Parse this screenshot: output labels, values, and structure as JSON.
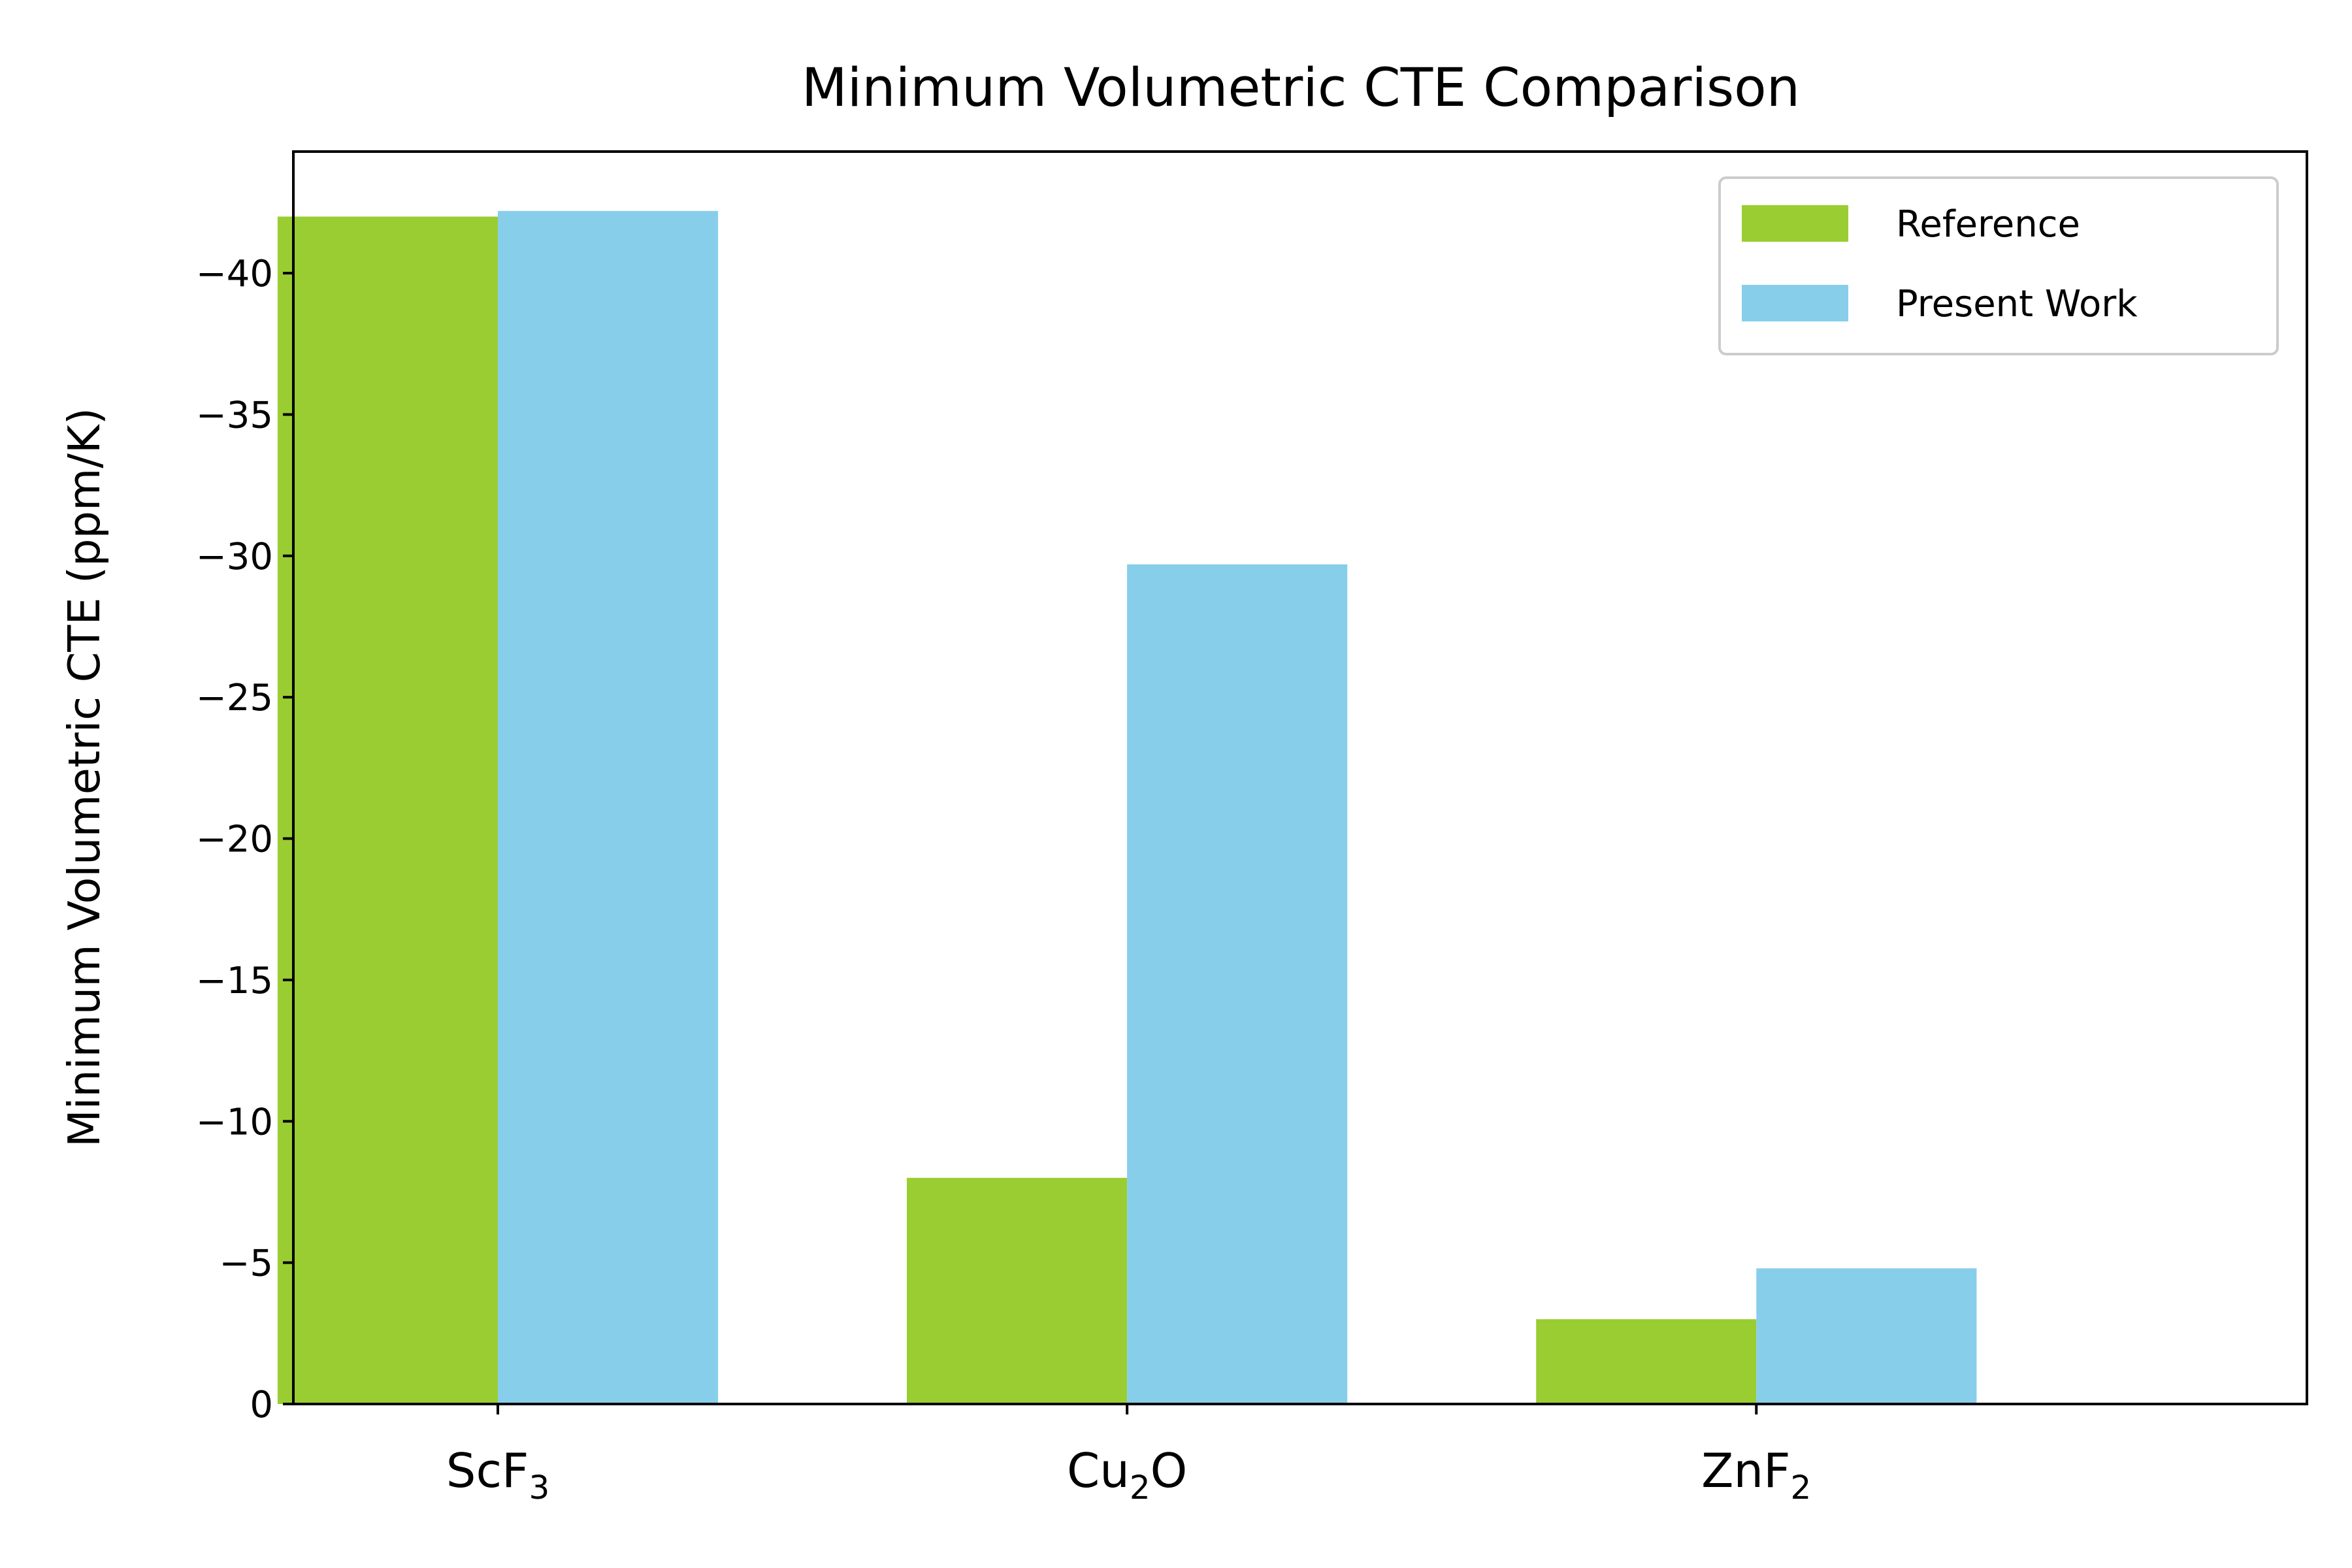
{
  "chart_data": {
    "type": "bar",
    "title": "Minimum Volumetric CTE Comparison",
    "xlabel": "",
    "ylabel": "Minimum Volumetric CTE (ppm/K)",
    "categories": [
      {
        "base": "ScF",
        "sub": "3",
        "tail": ""
      },
      {
        "base": "Cu",
        "sub": "2",
        "tail": "O"
      },
      {
        "base": "ZnF",
        "sub": "2",
        "tail": ""
      }
    ],
    "series": [
      {
        "name": "Reference",
        "color": "#9acd32",
        "values": [
          -42.0,
          -8.0,
          -3.0
        ]
      },
      {
        "name": "Present Work",
        "color": "#87ceeb",
        "values": [
          -42.2,
          -29.7,
          -4.8
        ]
      }
    ],
    "ylim": [
      0,
      -44.3
    ],
    "yticks": [
      0,
      -5,
      -10,
      -15,
      -20,
      -25,
      -30,
      -35,
      -40
    ],
    "ytick_labels": [
      "0",
      "−5",
      "−10",
      "−15",
      "−20",
      "−25",
      "−30",
      "−35",
      "−40"
    ],
    "grid": false,
    "legend_position": "top-right"
  }
}
